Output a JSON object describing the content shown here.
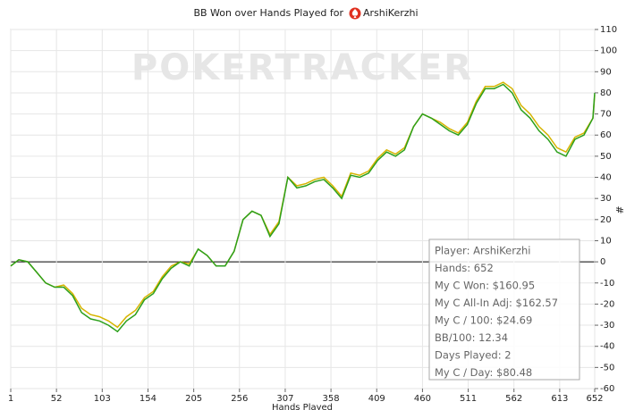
{
  "chart_data": {
    "type": "line",
    "title": "BB Won over Hands Played for",
    "title_player": "ArshiKerzhi",
    "watermark": "POKERTRACKER",
    "x_label": "Hands Played",
    "y_label": "#",
    "x": [
      1,
      10,
      20,
      30,
      40,
      50,
      60,
      70,
      80,
      90,
      100,
      110,
      120,
      130,
      140,
      150,
      160,
      170,
      180,
      190,
      200,
      210,
      220,
      230,
      240,
      250,
      260,
      270,
      280,
      290,
      300,
      310,
      320,
      330,
      340,
      350,
      360,
      370,
      380,
      390,
      400,
      410,
      420,
      430,
      440,
      450,
      460,
      470,
      480,
      490,
      500,
      510,
      520,
      530,
      540,
      550,
      560,
      570,
      580,
      590,
      600,
      610,
      620,
      630,
      640,
      650,
      652
    ],
    "series": [
      {
        "color": "#d6b400",
        "values": [
          -2,
          1,
          0,
          -5,
          -10,
          -12,
          -11,
          -15,
          -22,
          -25,
          -26,
          -28,
          -31,
          -26,
          -23,
          -17,
          -14,
          -7,
          -2,
          0,
          -1,
          6,
          3,
          -2,
          -2,
          5,
          20,
          24,
          22,
          13,
          19,
          40,
          36,
          37,
          39,
          40,
          36,
          31,
          42,
          41,
          43,
          49,
          53,
          51,
          54,
          64,
          70,
          68,
          66,
          63,
          61,
          66,
          76,
          83,
          83,
          85,
          82,
          74,
          70,
          64,
          60,
          54,
          52,
          59,
          61,
          68,
          79
        ]
      },
      {
        "color": "#2ca01c",
        "values": [
          -2,
          1,
          0,
          -5,
          -10,
          -12,
          -12,
          -16,
          -24,
          -27,
          -28,
          -30,
          -33,
          -28,
          -25,
          -18,
          -15,
          -8,
          -3,
          0,
          -2,
          6,
          3,
          -2,
          -2,
          5,
          20,
          24,
          22,
          12,
          18,
          40,
          35,
          36,
          38,
          39,
          35,
          30,
          41,
          40,
          42,
          48,
          52,
          50,
          53,
          64,
          70,
          68,
          65,
          62,
          60,
          65,
          75,
          82,
          82,
          84,
          80,
          72,
          68,
          62,
          58,
          52,
          50,
          58,
          60,
          68,
          80
        ]
      }
    ],
    "xlim": [
      1,
      652
    ],
    "xticks": [
      1,
      52,
      103,
      154,
      205,
      256,
      307,
      358,
      409,
      460,
      511,
      562,
      613,
      652
    ],
    "ylim": [
      -60,
      110
    ],
    "yticks": [
      -60,
      -50,
      -40,
      -30,
      -20,
      -10,
      0,
      10,
      20,
      30,
      40,
      50,
      60,
      70,
      80,
      90,
      100,
      110
    ],
    "grid": true,
    "info_box": [
      "Player: ArshiKerzhi",
      "Hands: 652",
      "My C Won: $160.95",
      "My C All-In Adj: $162.57",
      "My C / 100: $24.69",
      "BB/100: 12.34",
      "Days Played: 2",
      "My C / Day: $80.48"
    ]
  }
}
